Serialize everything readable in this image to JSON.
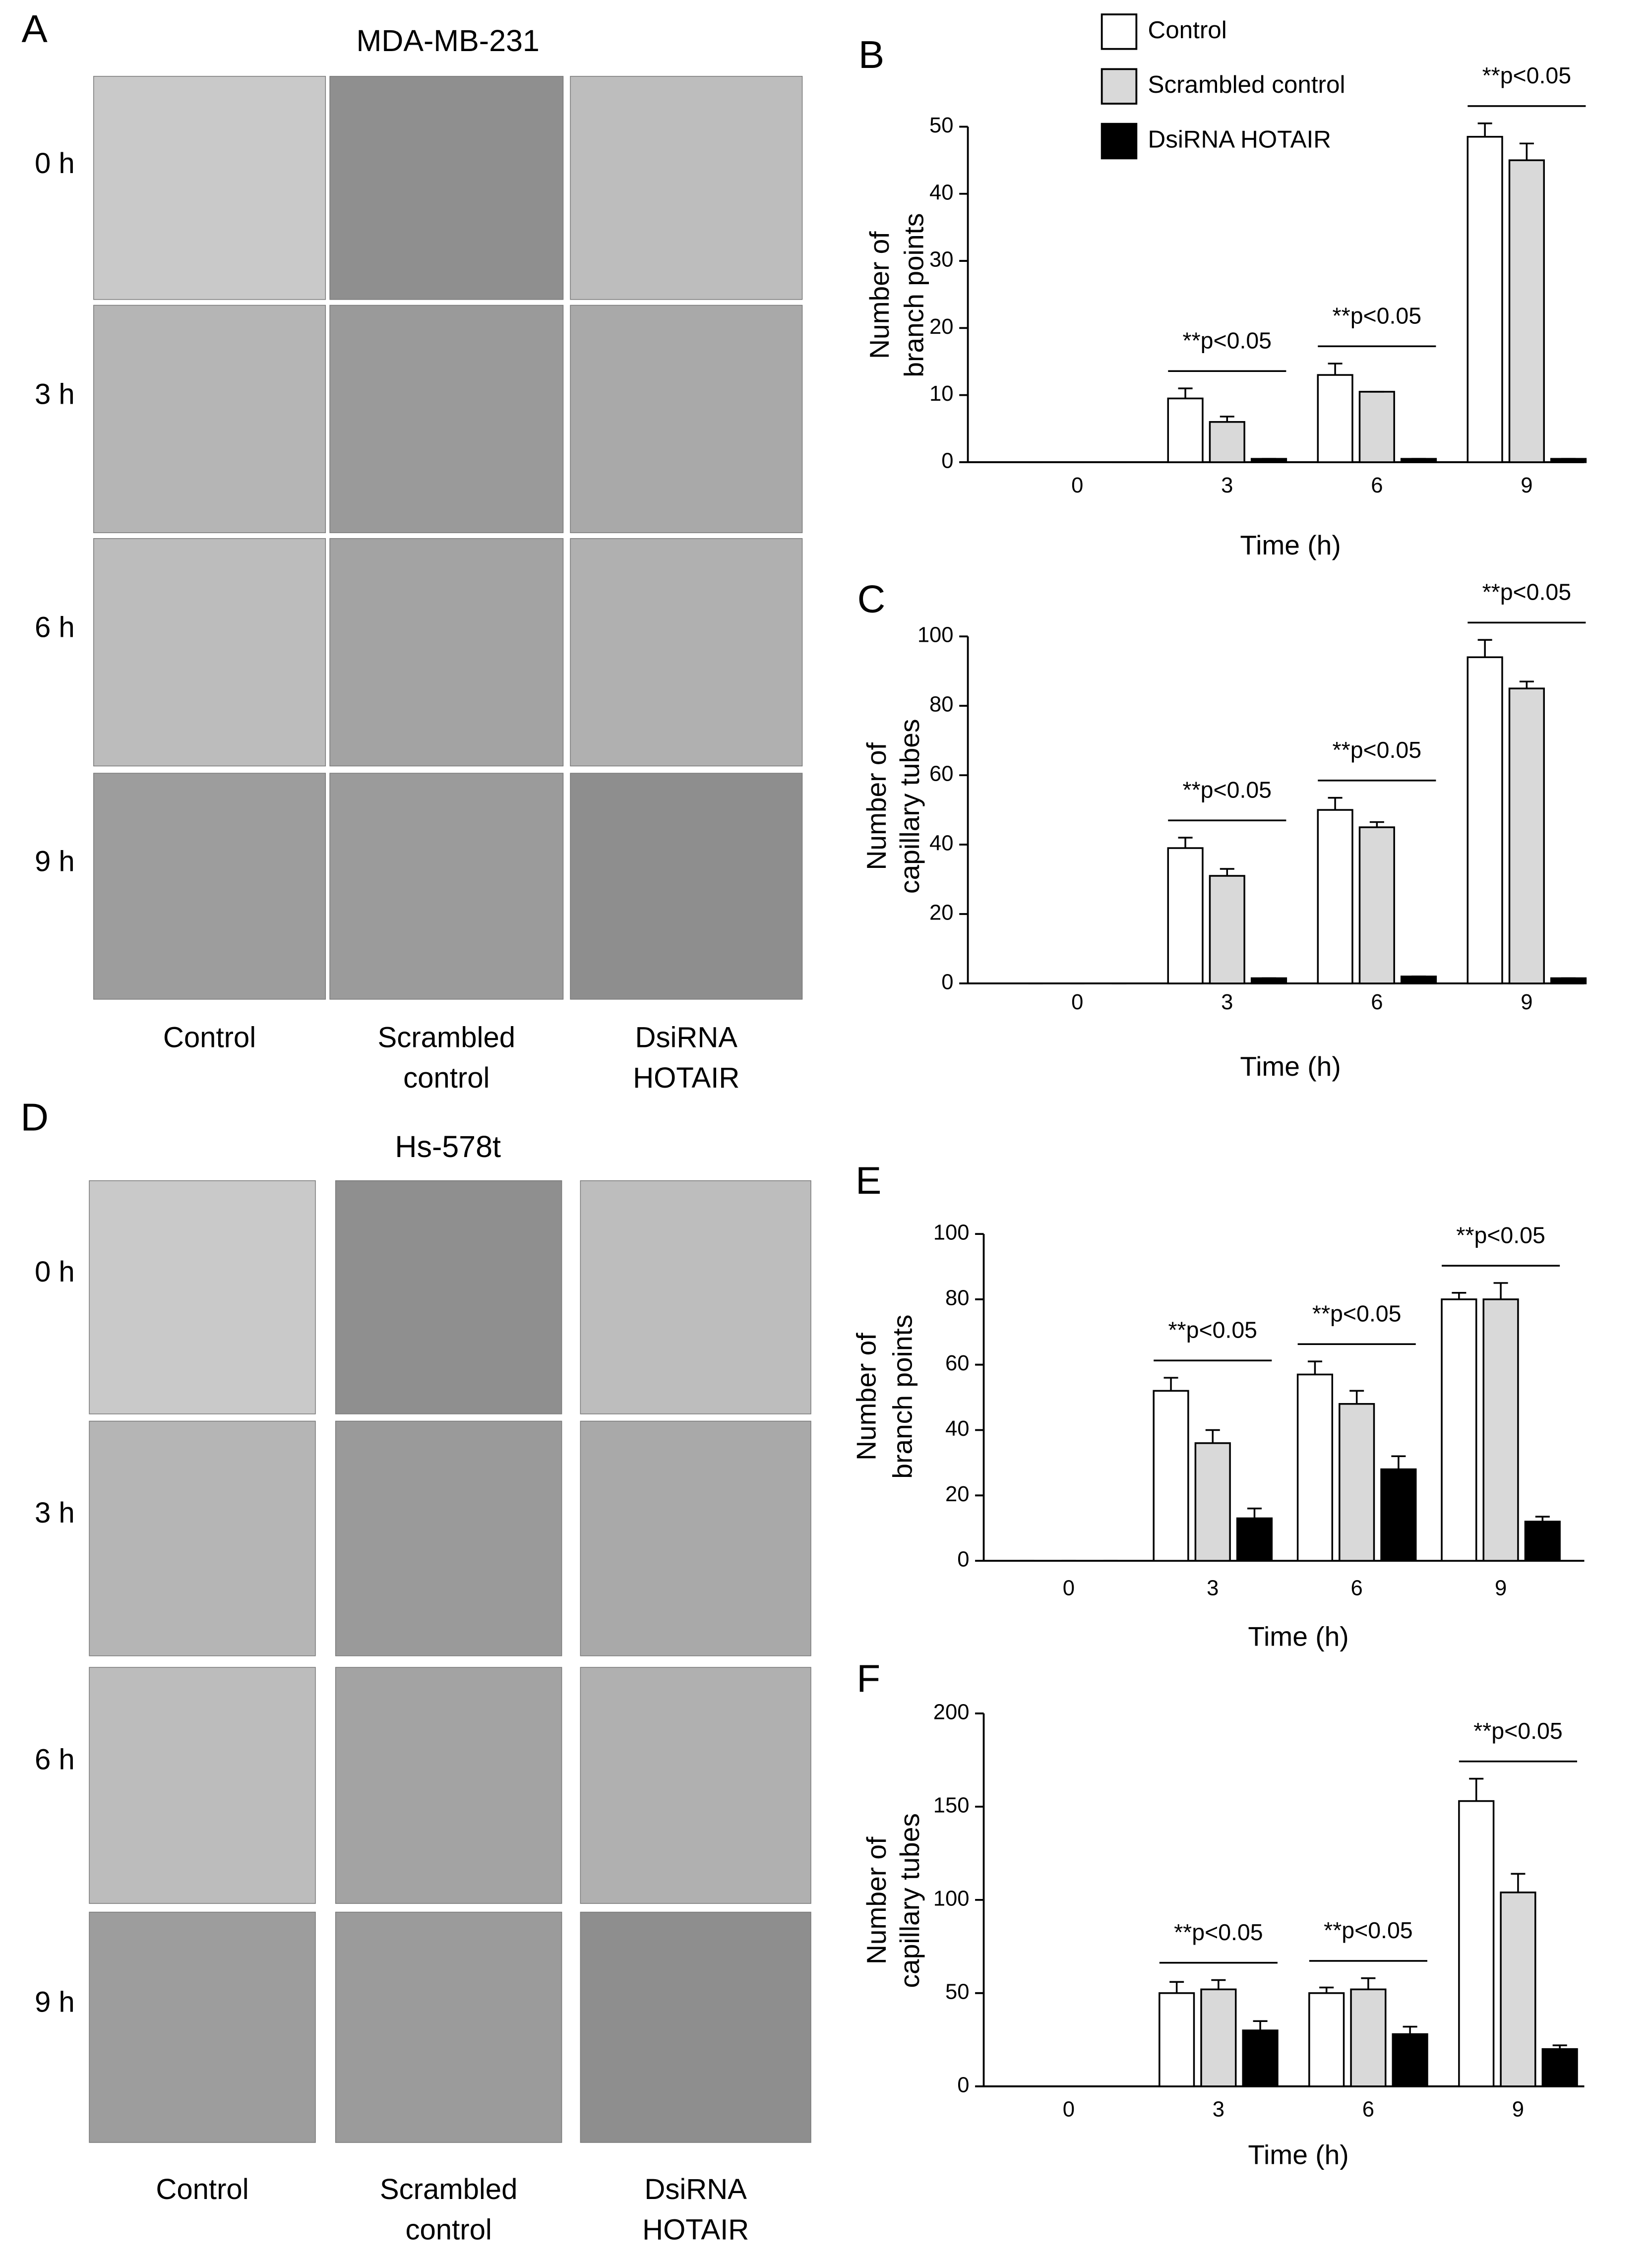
{
  "panels": [
    {
      "letter": "A",
      "title": "MDA-MB-231",
      "rows": [
        "0 h",
        "3 h",
        "6 h",
        "9 h"
      ],
      "columns": [
        [
          "Control"
        ],
        [
          "Scrambled",
          "control"
        ],
        [
          "DsiRNA",
          "HOTAIR"
        ]
      ]
    },
    {
      "letter": "D",
      "title": "Hs-578t",
      "rows": [
        "0 h",
        "3 h",
        "6 h",
        "9 h"
      ],
      "columns": [
        [
          "Control"
        ],
        [
          "Scrambled",
          "control"
        ],
        [
          "DsiRNA",
          "HOTAIR"
        ]
      ]
    }
  ],
  "chart_data": [
    {
      "type": "bar",
      "panel": "B",
      "ylabel": [
        "Number of",
        "branch points"
      ],
      "xlabel": "Time (h)",
      "categories": [
        "0",
        "3",
        "6",
        "9"
      ],
      "legend": "top-left",
      "annotations": [
        null,
        "**p<0.05",
        "**p<0.05",
        "**p<0.05"
      ],
      "ylim": [
        0,
        50
      ],
      "yticks": [
        0,
        10,
        20,
        30,
        40,
        50
      ],
      "series": [
        {
          "name": "Control",
          "color": "#ffffff",
          "values": [
            0,
            9.5,
            13,
            48.5
          ],
          "errors": [
            0,
            1.5,
            1.7,
            2
          ]
        },
        {
          "name": "Scrambled control",
          "color": "#d9d9d9",
          "values": [
            0,
            6,
            10.5,
            45
          ],
          "errors": [
            0,
            0.8,
            0,
            2.5
          ]
        },
        {
          "name": "DsiRNA HOTAIR",
          "color": "#000000",
          "values": [
            0,
            0.5,
            0.5,
            0.5
          ],
          "errors": [
            0,
            0,
            0,
            0
          ]
        }
      ]
    },
    {
      "type": "bar",
      "panel": "C",
      "ylabel": [
        "Number of",
        "capillary tubes"
      ],
      "xlabel": "Time (h)",
      "categories": [
        "0",
        "3",
        "6",
        "9"
      ],
      "annotations": [
        null,
        "**p<0.05",
        "**p<0.05",
        "**p<0.05"
      ],
      "ylim": [
        0,
        100
      ],
      "yticks": [
        0,
        20,
        40,
        60,
        80,
        100
      ],
      "series": [
        {
          "name": "Control",
          "color": "#ffffff",
          "values": [
            0,
            39,
            50,
            94
          ],
          "errors": [
            0,
            3,
            3.5,
            5
          ]
        },
        {
          "name": "Scrambled control",
          "color": "#d9d9d9",
          "values": [
            0,
            31,
            45,
            85
          ],
          "errors": [
            0,
            2,
            1.5,
            2
          ]
        },
        {
          "name": "DsiRNA HOTAIR",
          "color": "#000000",
          "values": [
            0,
            1.5,
            2,
            1.5
          ],
          "errors": [
            0,
            0,
            0,
            0
          ]
        }
      ]
    },
    {
      "type": "bar",
      "panel": "E",
      "ylabel": [
        "Number of",
        "branch points"
      ],
      "xlabel": "Time (h)",
      "categories": [
        "0",
        "3",
        "6",
        "9"
      ],
      "annotations": [
        null,
        "**p<0.05",
        "**p<0.05",
        "**p<0.05"
      ],
      "ylim": [
        0,
        100
      ],
      "yticks": [
        0,
        20,
        40,
        60,
        80,
        100
      ],
      "series": [
        {
          "name": "Control",
          "color": "#ffffff",
          "values": [
            0,
            52,
            57,
            80
          ],
          "errors": [
            0,
            4,
            4,
            2
          ]
        },
        {
          "name": "Scrambled control",
          "color": "#d9d9d9",
          "values": [
            0,
            36,
            48,
            80
          ],
          "errors": [
            0,
            4,
            4,
            5
          ]
        },
        {
          "name": "DsiRNA HOTAIR",
          "color": "#000000",
          "values": [
            0,
            13,
            28,
            12
          ],
          "errors": [
            0,
            3,
            4,
            1.5
          ]
        }
      ]
    },
    {
      "type": "bar",
      "panel": "F",
      "ylabel": [
        "Number of",
        "capillary tubes"
      ],
      "xlabel": "Time (h)",
      "categories": [
        "0",
        "3",
        "6",
        "9"
      ],
      "annotations": [
        null,
        "**p<0.05",
        "**p<0.05",
        "**p<0.05"
      ],
      "ylim": [
        0,
        200
      ],
      "yticks": [
        0,
        50,
        100,
        150,
        200
      ],
      "series": [
        {
          "name": "Control",
          "color": "#ffffff",
          "values": [
            0,
            50,
            50,
            153
          ],
          "errors": [
            0,
            6,
            3,
            12
          ]
        },
        {
          "name": "Scrambled control",
          "color": "#d9d9d9",
          "values": [
            0,
            52,
            52,
            104
          ],
          "errors": [
            0,
            5,
            6,
            10
          ]
        },
        {
          "name": "DsiRNA HOTAIR",
          "color": "#000000",
          "values": [
            0,
            30,
            28,
            20
          ],
          "errors": [
            0,
            5,
            4,
            2
          ]
        }
      ]
    }
  ]
}
